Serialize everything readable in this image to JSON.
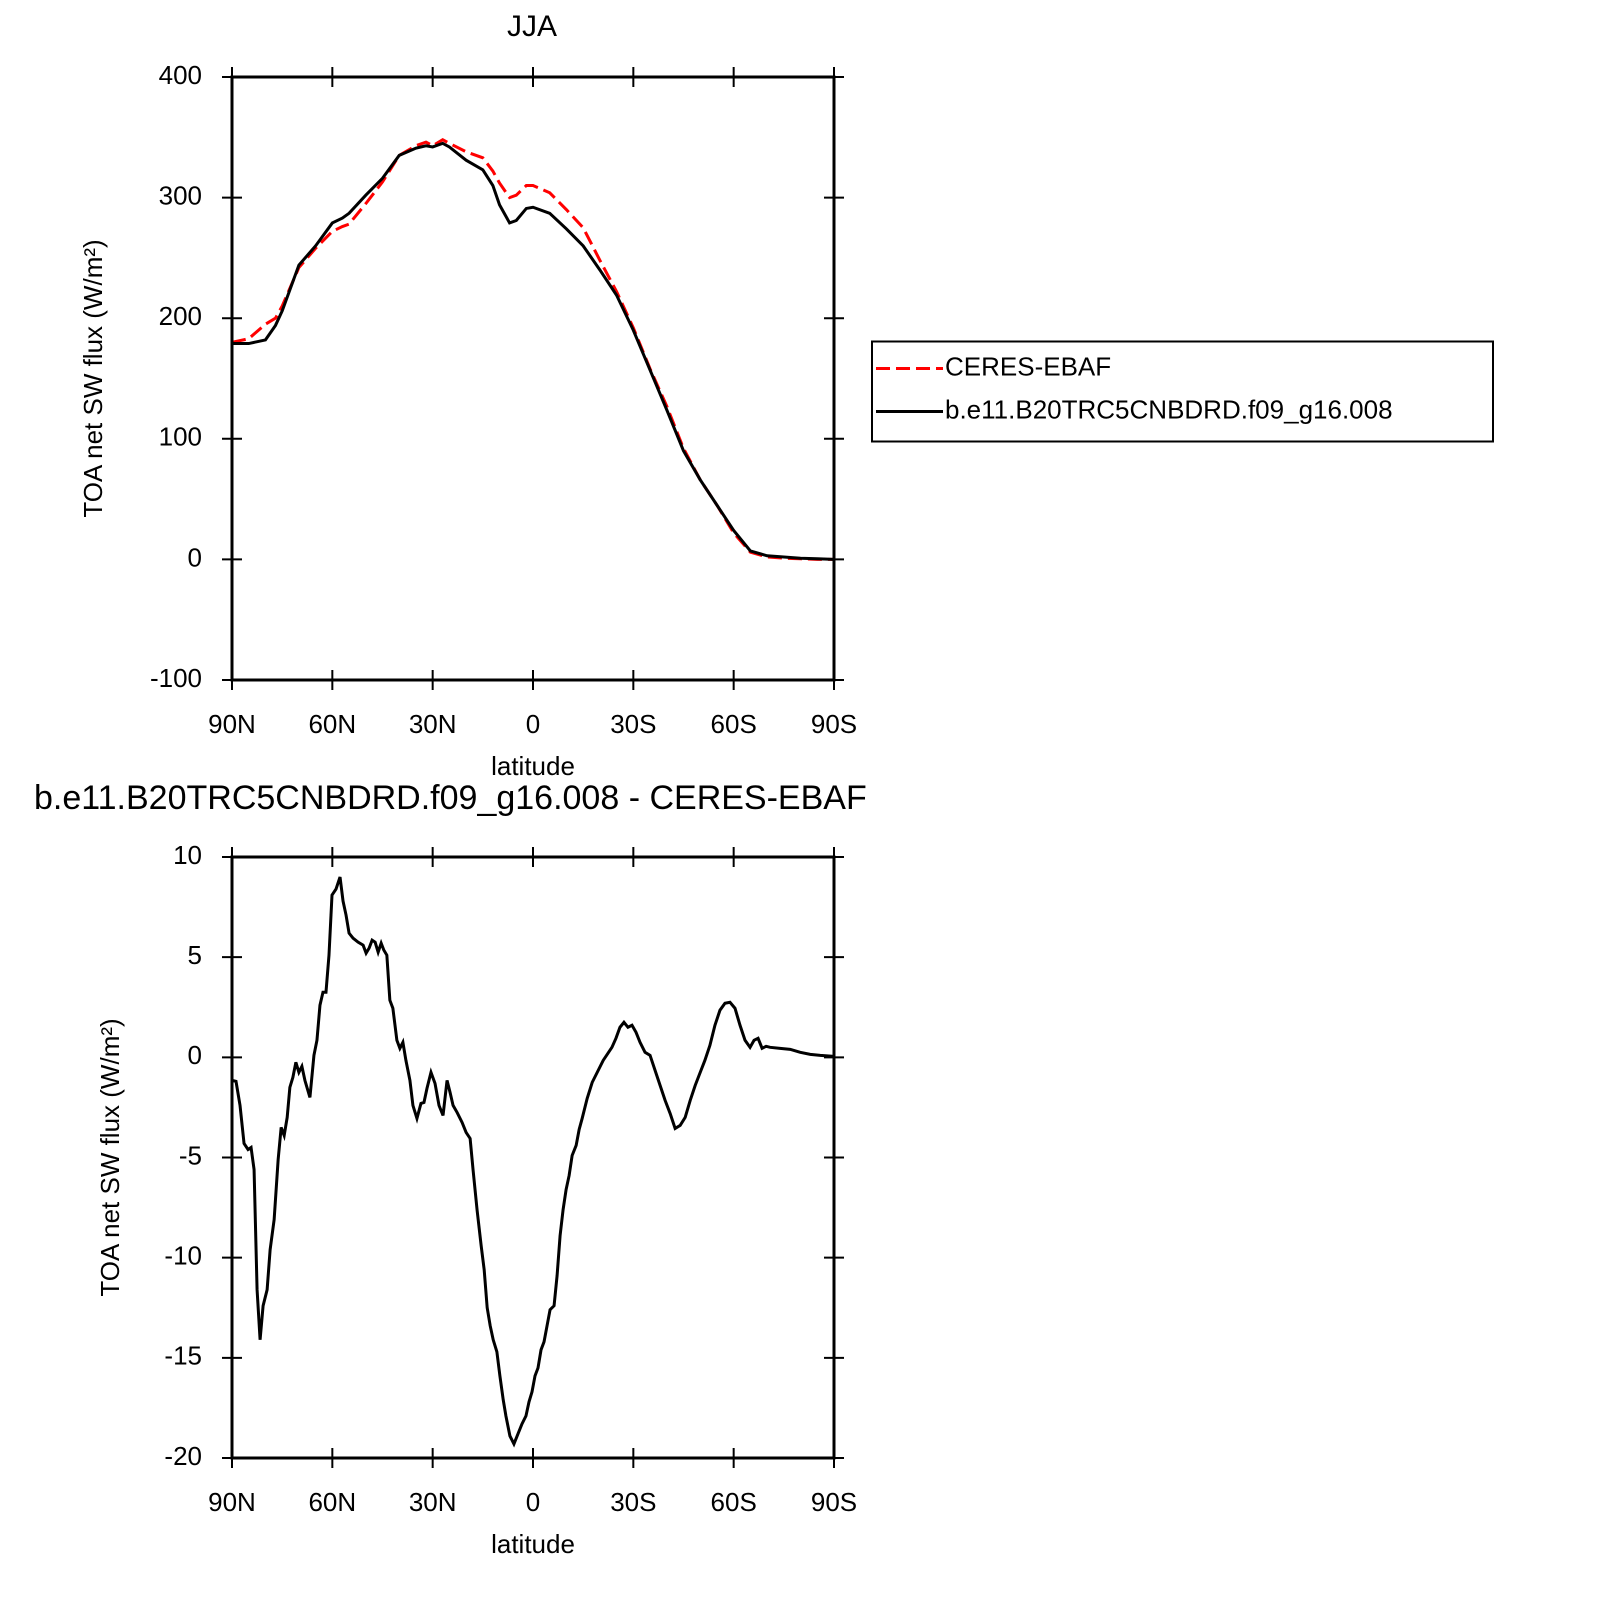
{
  "chart_data": [
    {
      "type": "line",
      "title": "JJA",
      "xlabel": "latitude",
      "ylabel": "TOA net SW flux (W/m²)",
      "x": [
        90,
        85,
        80,
        77,
        75,
        70,
        65,
        60,
        57,
        55,
        50,
        45,
        40,
        35,
        32,
        30,
        27,
        25,
        20,
        15,
        12,
        10,
        7,
        5,
        2,
        0,
        -5,
        -10,
        -15,
        -20,
        -25,
        -30,
        -35,
        -40,
        -45,
        -50,
        -55,
        -60,
        -65,
        -70,
        -75,
        -80,
        -85,
        -90
      ],
      "series": [
        {
          "name": "CERES-EBAF",
          "color": "#ff0000",
          "dash": "dashed",
          "values": [
            180,
            183,
            195,
            200,
            210,
            242,
            258,
            272,
            276,
            278,
            295,
            313,
            335,
            343,
            346,
            343,
            348,
            345,
            338,
            333,
            322,
            312,
            300,
            302,
            310,
            310,
            304,
            290,
            275,
            248,
            222,
            192,
            158,
            127,
            92,
            66,
            45,
            22,
            6,
            2,
            1,
            0.5,
            0,
            0
          ]
        },
        {
          "name": "b.e11.B20TRC5CNBDRD.f09_g16.008",
          "color": "#000000",
          "dash": "solid",
          "values": [
            179,
            179,
            182,
            194,
            206,
            244,
            260,
            279,
            283,
            287,
            302,
            316,
            335,
            341,
            343,
            342,
            345,
            342,
            331,
            323,
            310,
            294,
            279,
            281,
            291,
            292,
            287,
            274,
            260,
            240,
            219,
            190,
            157,
            124,
            90,
            66,
            45,
            24,
            7,
            3,
            2,
            1,
            0.5,
            0
          ]
        }
      ],
      "xlim": [
        90,
        -90
      ],
      "xticks": [
        {
          "value": 90,
          "label": "90N"
        },
        {
          "value": 60,
          "label": "60N"
        },
        {
          "value": 30,
          "label": "30N"
        },
        0,
        {
          "value": -30,
          "label": "30S"
        },
        {
          "value": -60,
          "label": "60S"
        },
        {
          "value": -90,
          "label": "90S"
        }
      ],
      "ylim": [
        -100,
        400
      ],
      "yticks": [
        -100,
        0,
        100,
        200,
        300,
        400
      ],
      "legend": "outside-right"
    },
    {
      "type": "line",
      "title": "b.e11.B20TRC5CNBDRD.f09_g16.008 - CERES-EBAF",
      "xlabel": "latitude",
      "ylabel": "TOA net SW flux (W/m²)",
      "x": [
        90,
        88.8,
        87.6,
        86.4,
        85.2,
        84.3,
        83.4,
        82.5,
        81.6,
        80.7,
        79.5,
        78.6,
        77.4,
        76.2,
        75.3,
        74.4,
        73.5,
        72.7,
        71.8,
        70.9,
        70,
        69.1,
        68.2,
        66.7,
        65.5,
        64.6,
        63.7,
        62.8,
        61.9,
        61,
        60.1,
        58.9,
        57.7,
        56.8,
        55.9,
        55,
        53.8,
        52.3,
        50.8,
        49.9,
        49,
        48.1,
        47.2,
        46.3,
        45.4,
        44.6,
        43.7,
        42.8,
        41.9,
        40.7,
        39.8,
        38.9,
        38,
        36.8,
        35.9,
        34.7,
        33.5,
        32.6,
        31.7,
        30.5,
        29.3,
        28.1,
        26.9,
        25.7,
        24.8,
        23.9,
        22.7,
        21.2,
        20,
        18.8,
        17.9,
        16.7,
        15.5,
        14.6,
        13.7,
        12.8,
        11.9,
        10.8,
        9.9,
        8.9,
        8.1,
        6.9,
        5.7,
        4.5,
        3.3,
        2.1,
        1.2,
        0.3,
        -0.6,
        -1.5,
        -2.4,
        -3.3,
        -4.2,
        -5.1,
        -6.3,
        -7.2,
        -8.1,
        -9,
        -9.9,
        -10.8,
        -11.7,
        -12.9,
        -13.8,
        -14.7,
        -16.2,
        -17.7,
        -19.2,
        -21,
        -22.4,
        -23.6,
        -24.8,
        -26,
        -27.2,
        -28.4,
        -29.6,
        -30.8,
        -32,
        -33.5,
        -35,
        -36.5,
        -38,
        -39.5,
        -41,
        -42.5,
        -44,
        -45.5,
        -47,
        -48.5,
        -50,
        -51.4,
        -52.9,
        -54.4,
        -55.9,
        -57.4,
        -58.9,
        -60.4,
        -61.9,
        -63.4,
        -64.9,
        -66.1,
        -67.3,
        -68.5,
        -69.7,
        -70.9,
        -73.9,
        -76.9,
        -79.9,
        -82.9,
        -85.9,
        -90
      ],
      "series": [
        {
          "color": "#000000",
          "dash": "solid",
          "values": [
            -1.15,
            -1.2,
            -2.4,
            -4.3,
            -4.6,
            -4.5,
            -5.6,
            -11.6,
            -14.1,
            -12.4,
            -11.6,
            -9.6,
            -8.1,
            -5.1,
            -3.5,
            -3.9,
            -3,
            -1.5,
            -1,
            -0.25,
            -0.75,
            -0.45,
            -1.15,
            -2,
            0.1,
            0.85,
            2.6,
            3.25,
            3.25,
            5.1,
            8.1,
            8.4,
            9,
            7.8,
            7.1,
            6.2,
            5.95,
            5.75,
            5.6,
            5.2,
            5.45,
            5.85,
            5.75,
            5.25,
            5.7,
            5.35,
            5.1,
            2.85,
            2.45,
            0.85,
            0.45,
            0.75,
            -0.15,
            -1.15,
            -2.4,
            -3.05,
            -2.3,
            -2.25,
            -1.55,
            -0.75,
            -1.3,
            -2.4,
            -2.9,
            -1.15,
            -1.75,
            -2.4,
            -2.75,
            -3.25,
            -3.75,
            -4.05,
            -5.65,
            -7.65,
            -9.4,
            -10.6,
            -12.5,
            -13.4,
            -14.1,
            -14.7,
            -15.9,
            -17.1,
            -17.9,
            -18.9,
            -19.3,
            -18.8,
            -18.3,
            -17.9,
            -17.2,
            -16.7,
            -15.9,
            -15.5,
            -14.6,
            -14.2,
            -13.4,
            -12.6,
            -12.4,
            -10.9,
            -8.9,
            -7.6,
            -6.6,
            -5.9,
            -4.9,
            -4.4,
            -3.6,
            -3.05,
            -2.05,
            -1.25,
            -0.75,
            -0.15,
            0.2,
            0.5,
            0.95,
            1.5,
            1.75,
            1.5,
            1.6,
            1.25,
            0.75,
            0.25,
            0.1,
            -0.65,
            -1.4,
            -2.15,
            -2.8,
            -3.55,
            -3.4,
            -3,
            -2.15,
            -1.4,
            -0.75,
            -0.15,
            0.6,
            1.6,
            2.35,
            2.7,
            2.75,
            2.45,
            1.6,
            0.85,
            0.5,
            0.85,
            0.95,
            0.45,
            0.55,
            0.5,
            0.45,
            0.4,
            0.25,
            0.15,
            0.1,
            0.05
          ]
        }
      ],
      "xlim": [
        90,
        -90
      ],
      "xticks": [
        {
          "value": 90,
          "label": "90N"
        },
        {
          "value": 60,
          "label": "60N"
        },
        {
          "value": 30,
          "label": "30N"
        },
        0,
        {
          "value": -30,
          "label": "30S"
        },
        {
          "value": -60,
          "label": "60S"
        },
        {
          "value": -90,
          "label": "90S"
        }
      ],
      "ylim": [
        -20,
        10
      ],
      "yticks": [
        -20,
        -15,
        -10,
        -5,
        0,
        5,
        10
      ]
    }
  ]
}
